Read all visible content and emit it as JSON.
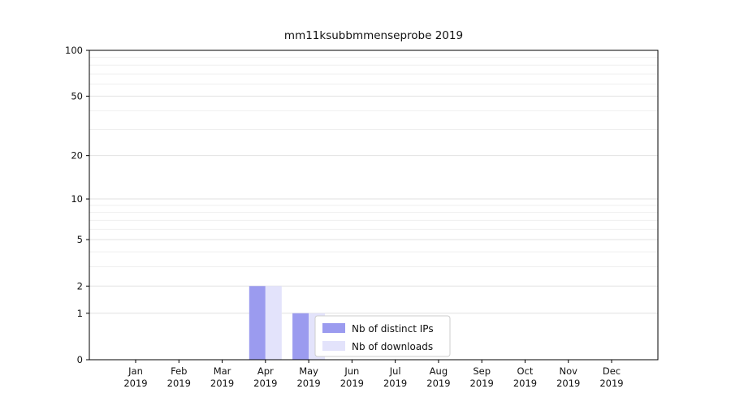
{
  "title": "mm11ksubbmmenseprobe 2019",
  "chart_data": {
    "type": "bar",
    "categories": [
      "Jan",
      "Feb",
      "Mar",
      "Apr",
      "May",
      "Jun",
      "Jul",
      "Aug",
      "Sep",
      "Oct",
      "Nov",
      "Dec"
    ],
    "year_label": "2019",
    "series": [
      {
        "name": "Nb of distinct IPs",
        "color": "#9b9bef",
        "values": [
          0,
          0,
          0,
          2,
          1,
          0,
          0,
          0,
          0,
          0,
          0,
          0
        ]
      },
      {
        "name": "Nb of downloads",
        "color": "#e3e3fb",
        "values": [
          0,
          0,
          0,
          2,
          1,
          0,
          0,
          0,
          0,
          0,
          0,
          0
        ]
      }
    ],
    "yticks": [
      0,
      1,
      2,
      5,
      10,
      20,
      50,
      100
    ],
    "minor_gridlines": [
      3,
      4,
      6,
      7,
      8,
      9,
      30,
      40,
      60,
      70,
      80,
      90
    ],
    "ylim": [
      0,
      100
    ],
    "scale": "log1p",
    "grid": true,
    "legend_position": "inside-bottom-center",
    "colors": {
      "axis": "#000000",
      "major_grid": "#e2e2e2",
      "minor_grid": "#efefef",
      "legend_border": "#cccccc",
      "legend_bg": "#ffffff",
      "text": "#111111"
    }
  }
}
